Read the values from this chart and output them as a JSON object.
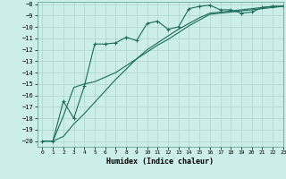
{
  "xlabel": "Humidex (Indice chaleur)",
  "ylabel": "",
  "xlim": [
    -0.5,
    23
  ],
  "ylim": [
    -20.5,
    -7.8
  ],
  "yticks": [
    -20,
    -19,
    -18,
    -17,
    -16,
    -15,
    -14,
    -13,
    -12,
    -11,
    -10,
    -9,
    -8
  ],
  "xticks": [
    0,
    1,
    2,
    3,
    4,
    5,
    6,
    7,
    8,
    9,
    10,
    11,
    12,
    13,
    14,
    15,
    16,
    17,
    18,
    19,
    20,
    21,
    22,
    23
  ],
  "line_color": "#1a6b5a",
  "bg_color": "#cceee8",
  "grid_color": "#aad4cc",
  "line1_x": [
    0,
    1,
    2,
    3,
    4,
    5,
    6,
    7,
    8,
    9,
    10,
    11,
    12,
    13,
    14,
    15,
    16,
    17,
    18,
    19,
    20,
    21,
    22,
    23
  ],
  "line1_y": [
    -20,
    -20,
    -16.5,
    -18,
    -15.2,
    -11.5,
    -11.5,
    -11.4,
    -10.9,
    -11.2,
    -9.7,
    -9.5,
    -10.2,
    -10.0,
    -8.4,
    -8.2,
    -8.1,
    -8.5,
    -8.5,
    -8.8,
    -8.7,
    -8.3,
    -8.2,
    -8.2
  ],
  "line2_x": [
    0,
    1,
    2,
    3,
    4,
    5,
    6,
    7,
    8,
    9,
    10,
    11,
    12,
    13,
    14,
    15,
    16,
    17,
    18,
    19,
    20,
    21,
    22,
    23
  ],
  "line2_y": [
    -20,
    -20,
    -17.8,
    -15.3,
    -15.0,
    -14.8,
    -14.4,
    -14.0,
    -13.4,
    -12.8,
    -12.0,
    -11.4,
    -10.8,
    -10.2,
    -9.7,
    -9.2,
    -8.8,
    -8.7,
    -8.6,
    -8.5,
    -8.4,
    -8.3,
    -8.2,
    -8.2
  ],
  "line3_x": [
    0,
    1,
    2,
    3,
    4,
    5,
    6,
    7,
    8,
    9,
    10,
    11,
    12,
    13,
    14,
    15,
    16,
    17,
    18,
    19,
    20,
    21,
    22,
    23
  ],
  "line3_y": [
    -20,
    -20,
    -19.6,
    -18.5,
    -17.6,
    -16.6,
    -15.6,
    -14.6,
    -13.7,
    -12.8,
    -12.2,
    -11.6,
    -11.1,
    -10.5,
    -9.9,
    -9.4,
    -8.9,
    -8.8,
    -8.7,
    -8.6,
    -8.5,
    -8.4,
    -8.3,
    -8.2
  ]
}
